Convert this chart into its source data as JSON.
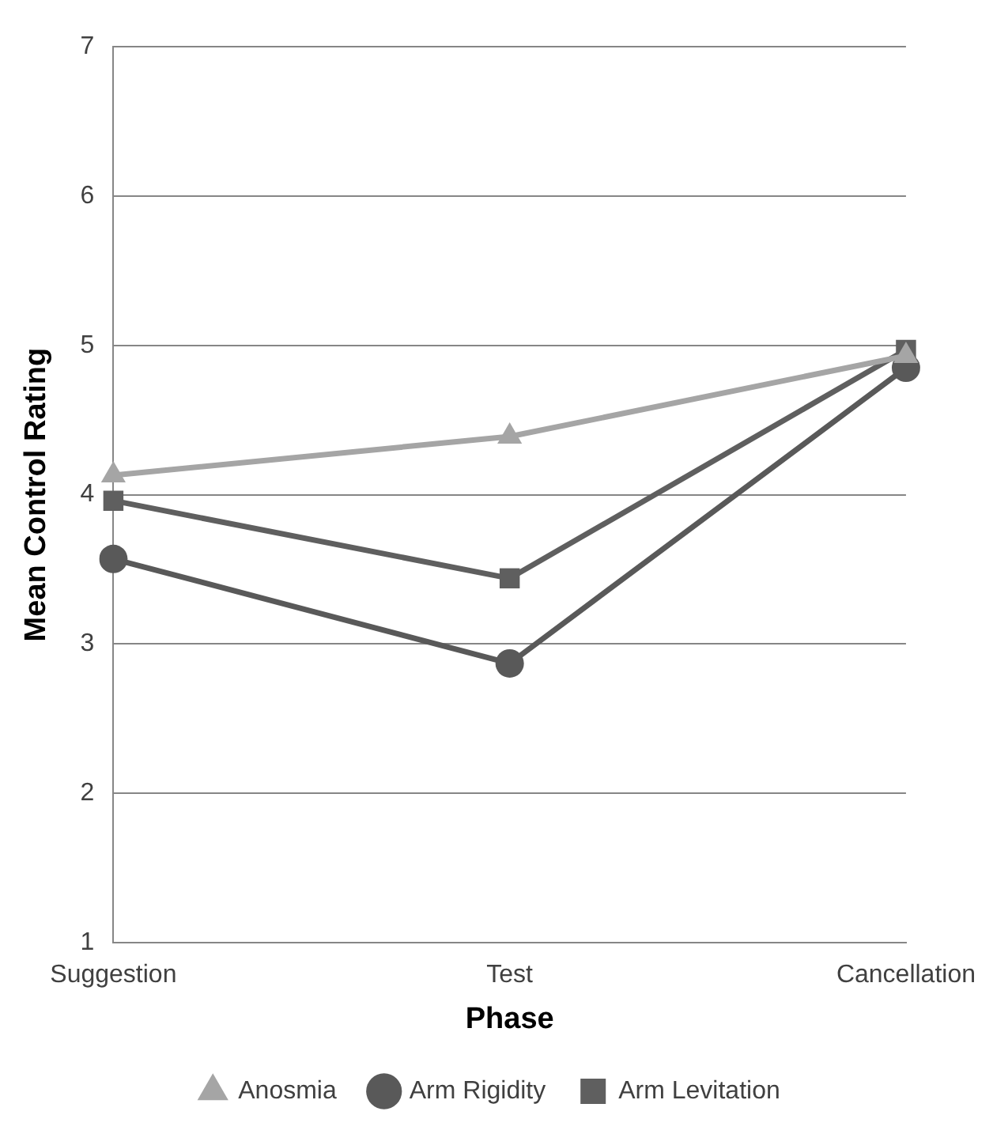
{
  "chart_data": {
    "type": "line",
    "xlabel": "Phase",
    "ylabel": "Mean Control Rating",
    "categories": [
      "Suggestion",
      "Test",
      "Cancellation"
    ],
    "series": [
      {
        "name": "Arm Levitation",
        "color": "#5f5f5f",
        "marker": "square",
        "values": [
          3.96,
          3.44,
          4.97
        ]
      },
      {
        "name": "Arm Rigidity",
        "color": "#595959",
        "marker": "circle",
        "values": [
          3.57,
          2.87,
          4.85
        ]
      },
      {
        "name": "Anosmia",
        "color": "#a5a5a5",
        "marker": "triangle",
        "values": [
          4.13,
          4.39,
          4.93
        ]
      }
    ],
    "ylim": [
      1,
      7
    ],
    "yticks": [
      1,
      2,
      3,
      4,
      5,
      6,
      7
    ],
    "grid": "y",
    "legend": "bottom"
  }
}
